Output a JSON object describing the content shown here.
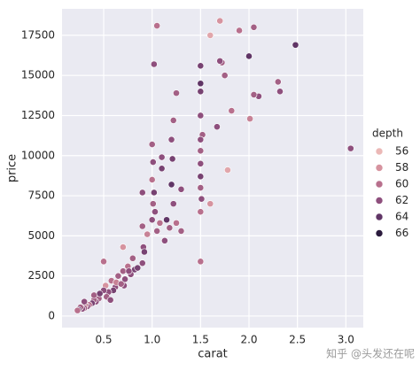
{
  "chart_data": {
    "type": "scatter",
    "x_label": "carat",
    "y_label": "price",
    "xlim": [
      0.07,
      3.18
    ],
    "ylim": [
      -720,
      19150
    ],
    "xticks": [
      0.5,
      {
        "value": 1,
        "label": "1.0"
      },
      1.5,
      {
        "value": 2,
        "label": "2.0"
      },
      2.5,
      {
        "value": 3,
        "label": "3.0"
      }
    ],
    "yticks": [
      0,
      2500,
      5000,
      7500,
      10000,
      12500,
      15000,
      17500
    ],
    "grid": true,
    "legend_title": "depth",
    "legend_position": "right",
    "hue_levels": [
      56,
      58,
      60,
      62,
      64,
      66
    ],
    "hue_colors": [
      "#ebb8b6",
      "#d6939f",
      "#b8708d",
      "#8e4f7d",
      "#603566",
      "#2b1b3d"
    ],
    "x": [
      1.05,
      1.02,
      1.5,
      1.7,
      1.9,
      2.05,
      2.0,
      1.6,
      2.3,
      2.32,
      2.1,
      2.05,
      1.82,
      1.75,
      1.72,
      1.7,
      1.25,
      1.5,
      1.78,
      1.6,
      1.52,
      2.01,
      1.67,
      3.05,
      2.48,
      1.5,
      1.5,
      1.5,
      1.5,
      1.5,
      1.5,
      1.5,
      1.5,
      1.51,
      1.5,
      1.22,
      1.2,
      1.21,
      1.2,
      1.22,
      1.1,
      1.1,
      1.0,
      1.01,
      1.0,
      1.02,
      1.01,
      1.03,
      1.0,
      1.05,
      1.08,
      0.9,
      0.9,
      0.91,
      0.92,
      0.95,
      1.13,
      1.15,
      1.18,
      1.25,
      1.3,
      1.3,
      0.8,
      0.78,
      0.82,
      0.75,
      0.72,
      0.7,
      0.7,
      0.71,
      0.65,
      0.62,
      0.6,
      0.58,
      0.55,
      0.53,
      0.52,
      0.5,
      0.5,
      0.45,
      0.42,
      0.4,
      0.38,
      0.35,
      0.33,
      0.31,
      0.3,
      0.28,
      0.26,
      0.24,
      0.23,
      0.3,
      0.4,
      0.46,
      0.57,
      0.63,
      0.68,
      0.76,
      0.85,
      0.9
    ],
    "values": [
      18100,
      15700,
      15600,
      18400,
      17800,
      18000,
      16200,
      17500,
      14600,
      14000,
      13700,
      13800,
      12800,
      15000,
      15800,
      15900,
      13900,
      3400,
      9100,
      7000,
      11300,
      12300,
      11800,
      10450,
      16900,
      14500,
      14000,
      12500,
      11000,
      10300,
      9500,
      8700,
      8000,
      7300,
      6500,
      12200,
      11000,
      9800,
      8200,
      7000,
      9900,
      9200,
      10700,
      9600,
      8500,
      7700,
      7000,
      6500,
      6000,
      5300,
      5800,
      7700,
      5600,
      4300,
      4000,
      5100,
      4700,
      6000,
      5500,
      5800,
      7900,
      5300,
      3600,
      2600,
      2900,
      3100,
      2300,
      2800,
      4300,
      1900,
      2500,
      1800,
      1600,
      2200,
      1500,
      1200,
      1900,
      1600,
      3400,
      1100,
      900,
      1000,
      800,
      700,
      600,
      650,
      500,
      450,
      550,
      400,
      350,
      900,
      1300,
      1400,
      1000,
      2100,
      2000,
      2800,
      3000,
      3300
    ],
    "hue": [
      60,
      62,
      63,
      58,
      60,
      61,
      64,
      57,
      61,
      62,
      62,
      61,
      60,
      61,
      61,
      62,
      61,
      60,
      57,
      58,
      61,
      59,
      62,
      62,
      64,
      64,
      63,
      62,
      62,
      61,
      62,
      63,
      61,
      62,
      60,
      61,
      62,
      63,
      64,
      62,
      62,
      63,
      61,
      62,
      60,
      63,
      61,
      62,
      62,
      61,
      60,
      62,
      61,
      62,
      63,
      59,
      62,
      64,
      61,
      60,
      62,
      61,
      61,
      62,
      63,
      60,
      62,
      61,
      58,
      62,
      61,
      62,
      63,
      60,
      62,
      61,
      58,
      62,
      60,
      61,
      62,
      61,
      63,
      60,
      62,
      59,
      61,
      62,
      61,
      64,
      60,
      62,
      61,
      63,
      62,
      59,
      61,
      62,
      63,
      62
    ]
  },
  "watermark": "知乎 @头发还在呢"
}
